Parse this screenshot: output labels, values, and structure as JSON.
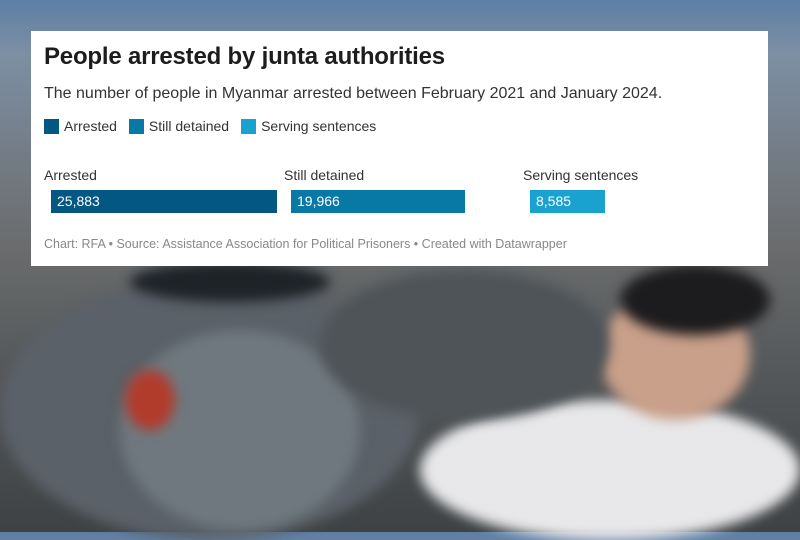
{
  "chart_data": {
    "type": "bar",
    "title": "People arrested by junta authorities",
    "subtitle": "The number of people in Myanmar arrested between February 2021 and January 2024.",
    "categories": [
      "Arrested",
      "Still detained",
      "Serving sentences"
    ],
    "values": [
      25883,
      19966,
      8585
    ],
    "value_labels": [
      "25,883",
      "19,966",
      "8,585"
    ],
    "colors": [
      "#035783",
      "#0878a4",
      "#19a1cf"
    ],
    "legend": [
      "Arrested",
      "Still detained",
      "Serving sentences"
    ],
    "legend_placement": "top-left",
    "grid": false,
    "footer": "Chart: RFA • Source: Assistance Association for Political Prisoners • Created with Datawrapper"
  }
}
